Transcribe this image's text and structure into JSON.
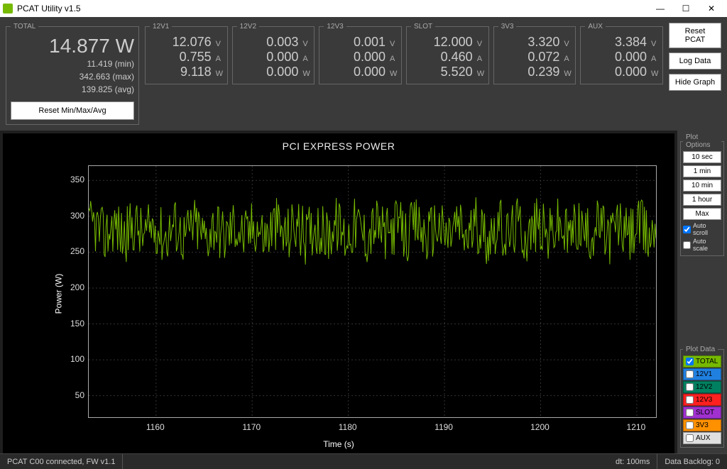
{
  "window": {
    "title": "PCAT Utility v1.5"
  },
  "total": {
    "legend": "TOTAL",
    "value": "14.877",
    "unit": "W",
    "min": "11.419",
    "max": "342.663",
    "avg": "139.825",
    "reset_label": "Reset Min/Max/Avg"
  },
  "rails": [
    {
      "name": "12V1",
      "v": "12.076",
      "a": "0.755",
      "w": "9.118"
    },
    {
      "name": "12V2",
      "v": "0.003",
      "a": "0.000",
      "w": "0.000"
    },
    {
      "name": "12V3",
      "v": "0.001",
      "a": "0.000",
      "w": "0.000"
    },
    {
      "name": "SLOT",
      "v": "12.000",
      "a": "0.460",
      "w": "5.520"
    },
    {
      "name": "3V3",
      "v": "3.320",
      "a": "0.072",
      "w": "0.239"
    },
    {
      "name": "AUX",
      "v": "3.384",
      "a": "0.000",
      "w": "0.000"
    }
  ],
  "buttons": {
    "reset_pcat": "Reset PCAT",
    "log_data": "Log Data",
    "hide_graph": "Hide Graph"
  },
  "plot_options": {
    "legend": "Plot Options",
    "buttons": [
      "10 sec",
      "1 min",
      "10 min",
      "1 hour",
      "Max"
    ],
    "auto_scroll": "Auto scroll",
    "auto_scale": "Auto scale",
    "auto_scroll_checked": true,
    "auto_scale_checked": false
  },
  "plot_data": {
    "legend": "Plot Data",
    "series": [
      {
        "label": "TOTAL",
        "color": "#76b900",
        "checked": true
      },
      {
        "label": "12V1",
        "color": "#2080e0",
        "checked": false
      },
      {
        "label": "12V2",
        "color": "#008060",
        "checked": false
      },
      {
        "label": "12V3",
        "color": "#ff2020",
        "checked": false
      },
      {
        "label": "SLOT",
        "color": "#a030d0",
        "checked": false
      },
      {
        "label": "3V3",
        "color": "#ff9000",
        "checked": false
      },
      {
        "label": "AUX",
        "color": "#e0e0e0",
        "checked": false
      }
    ]
  },
  "chart": {
    "title": "PCI EXPRESS POWER",
    "xlabel": "Time (s)",
    "ylabel": "Power (W)",
    "xlim": [
      1153,
      1212
    ],
    "ylim": [
      20,
      370
    ],
    "yticks": [
      50,
      100,
      150,
      200,
      250,
      300,
      350
    ],
    "xticks": [
      1160,
      1170,
      1180,
      1190,
      1200,
      1210
    ],
    "line_color": "#76b900",
    "grid_color": "#333333",
    "background_color": "#000000",
    "data_mean": 280,
    "data_amplitude": 40,
    "data_points": 590
  },
  "status": {
    "left": "PCAT C00 connected, FW v1.1",
    "dt": "dt: 100ms",
    "backlog": "Data Backlog: 0"
  }
}
